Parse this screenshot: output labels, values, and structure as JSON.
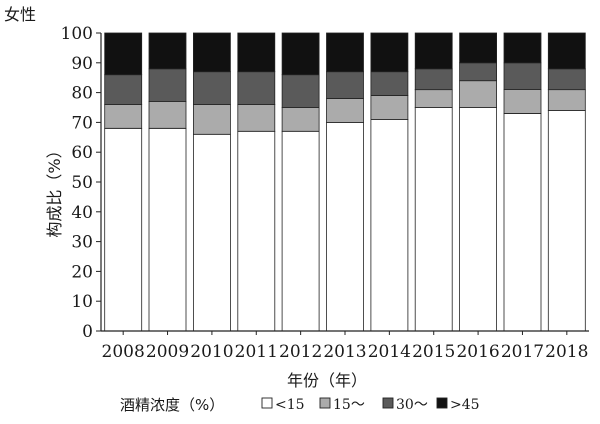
{
  "chart_data": {
    "type": "bar",
    "stacked": true,
    "title": "女性",
    "xlabel": "年份（年）",
    "ylabel": "构成比（%）",
    "ylim": [
      0,
      100
    ],
    "yticks": [
      0,
      10,
      20,
      30,
      40,
      50,
      60,
      70,
      80,
      90,
      100
    ],
    "grid": false,
    "legend_position": "bottom",
    "legend_title": "酒精浓度（%）",
    "categories": [
      "2008",
      "2009",
      "2010",
      "2011",
      "2012",
      "2013",
      "2014",
      "2015",
      "2016",
      "2017",
      "2018"
    ],
    "series": [
      {
        "name": "<15",
        "legend_label": "<15",
        "color": "#ffffff",
        "values": [
          68,
          68,
          66,
          67,
          67,
          70,
          71,
          75,
          75,
          73,
          74
        ]
      },
      {
        "name": "15～",
        "legend_label": "15～",
        "color": "#ababab",
        "values": [
          8,
          9,
          10,
          9,
          8,
          8,
          8,
          6,
          9,
          8,
          7
        ]
      },
      {
        "name": "30～",
        "legend_label": "30～",
        "color": "#5a5a5a",
        "values": [
          10,
          11,
          11,
          11,
          11,
          9,
          8,
          7,
          6,
          9,
          7
        ]
      },
      {
        "name": ">45",
        "legend_label": ">45",
        "color": "#111111",
        "values": [
          14,
          12,
          13,
          13,
          14,
          13,
          13,
          12,
          10,
          10,
          12
        ]
      }
    ]
  }
}
